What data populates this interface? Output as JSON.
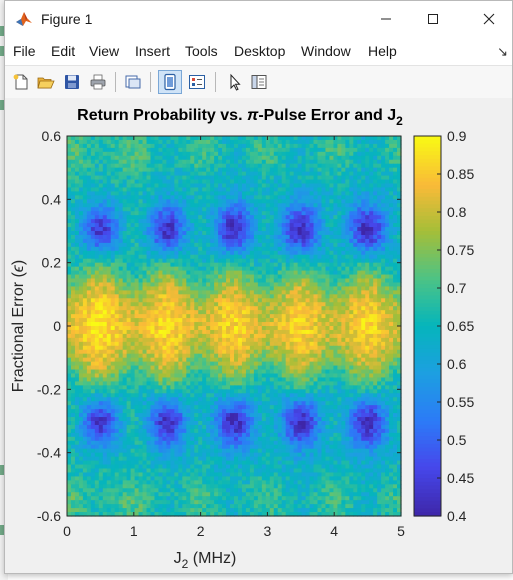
{
  "window": {
    "title": "Figure 1"
  },
  "menu": [
    "File",
    "Edit",
    "View",
    "Insert",
    "Tools",
    "Desktop",
    "Window",
    "Help"
  ],
  "toolbar": {
    "buttons": [
      "new-figure",
      "open-file",
      "save",
      "print",
      "link-plot",
      "toggle-plot-tools",
      "insert-legend",
      "edit-plot",
      "property-inspector"
    ]
  },
  "chart_data": {
    "type": "heatmap",
    "title_main": "Return Probability vs. ",
    "title_pi": "π",
    "title_mid": "-Pulse Error and J",
    "title_sub": "2",
    "xlabel_main": "J",
    "xlabel_sub": "2",
    "xlabel_unit": " (MHz)",
    "ylabel_main": "Fractional Error (",
    "ylabel_eps": "ϵ",
    "ylabel_close": ")",
    "x_range": [
      0,
      5
    ],
    "y_range": [
      -0.6,
      0.6
    ],
    "x_ticks": [
      "0",
      "1",
      "2",
      "3",
      "4",
      "5"
    ],
    "y_ticks": [
      "-0.6",
      "-0.4",
      "-0.2",
      "0",
      "0.2",
      "0.4",
      "0.6"
    ],
    "colorbar_range": [
      0.4,
      0.9
    ],
    "colorbar_ticks": [
      "0.4",
      "0.45",
      "0.5",
      "0.55",
      "0.6",
      "0.65",
      "0.7",
      "0.75",
      "0.8",
      "0.85",
      "0.9"
    ],
    "colormap": "parula",
    "pattern": {
      "description": "oscillating return probability; bright band near zero error peaking at J2 = 0.5, 1.5, 2.5, 3.5, 4.5 MHz; dark lobes near error ±0.3 at J2 = 0.5, 1.5, 2.5, 3.5, 4.5 MHz",
      "j2_period_mhz": 1.0,
      "center_max": 0.87,
      "lobe_min": 0.43,
      "noise": 0.04
    }
  }
}
